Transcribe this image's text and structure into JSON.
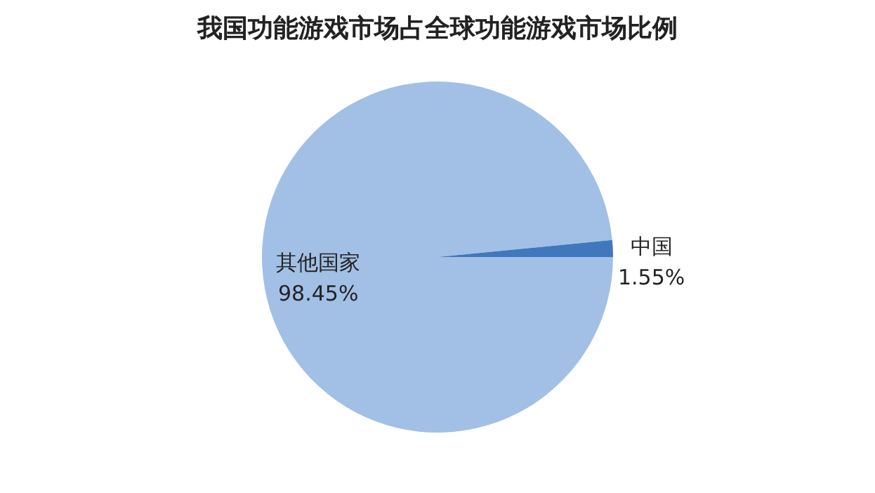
{
  "chart_data": {
    "type": "pie",
    "title": "我国功能游戏市场占全球功能游戏市场比例",
    "categories": [
      "其他国家",
      "中国"
    ],
    "values": [
      98.45,
      1.55
    ],
    "colors": [
      "#a2c0e6",
      "#3f78bd"
    ],
    "value_labels": [
      "98.45%",
      "1.55%"
    ]
  }
}
